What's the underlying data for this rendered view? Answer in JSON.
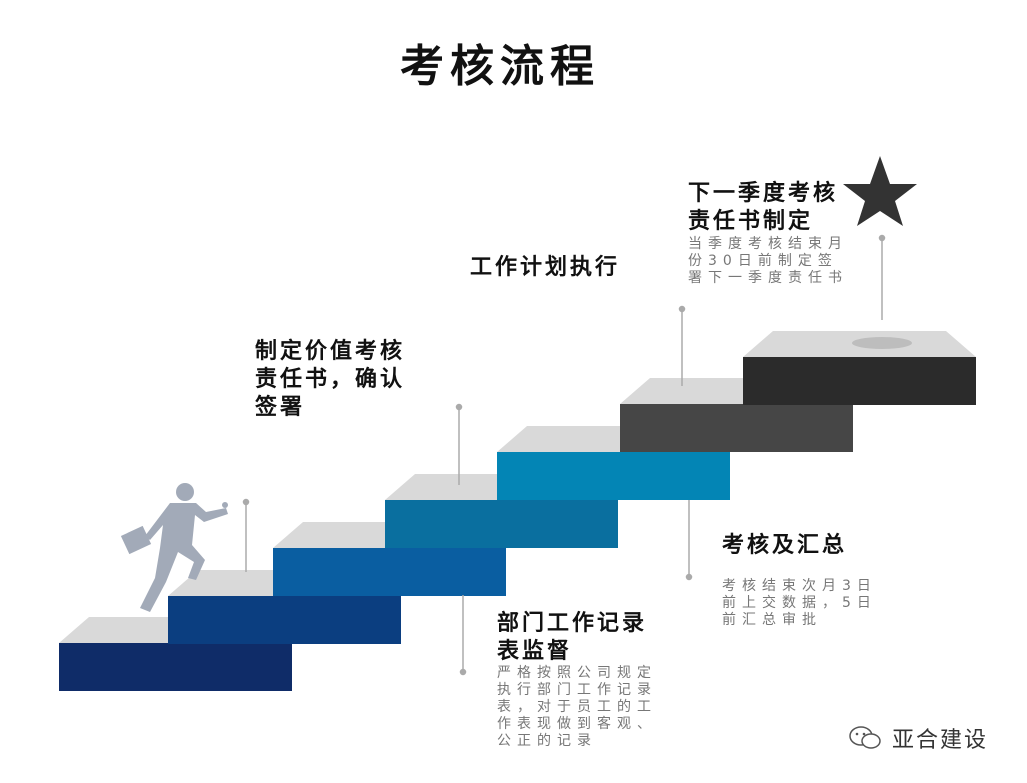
{
  "title": "考核流程",
  "steps": [
    {
      "color": "#0f2c68"
    },
    {
      "color": "#0b3e80"
    },
    {
      "color": "#0a5ea1"
    },
    {
      "color": "#0a6f9f"
    },
    {
      "color": "#0385b5"
    },
    {
      "color": "#464646"
    },
    {
      "color": "#2b2b2b"
    }
  ],
  "labels": {
    "sign": {
      "title": "制定价值考核\n责任书，确认\n签署"
    },
    "execute": {
      "title": "工作计划执行"
    },
    "next": {
      "title": "下一季度考核\n责任书制定",
      "desc": "当季度考核结束月份30日前制定签署下一季度责任书"
    },
    "supervise": {
      "title": "部门工作记录\n表监督",
      "desc": "严格按照公司规定执行部门工作记录表，对于员工的工作表现做到客观、公正的记录"
    },
    "summary": {
      "title": "考核及汇总",
      "desc": "考核结束次月3日前上交数据，5日前汇总审批"
    }
  },
  "watermark": {
    "text": "亚合建设",
    "icon": "wechat-icon"
  },
  "goal_icon": "star-icon",
  "figure_icon": "running-businessman-icon"
}
